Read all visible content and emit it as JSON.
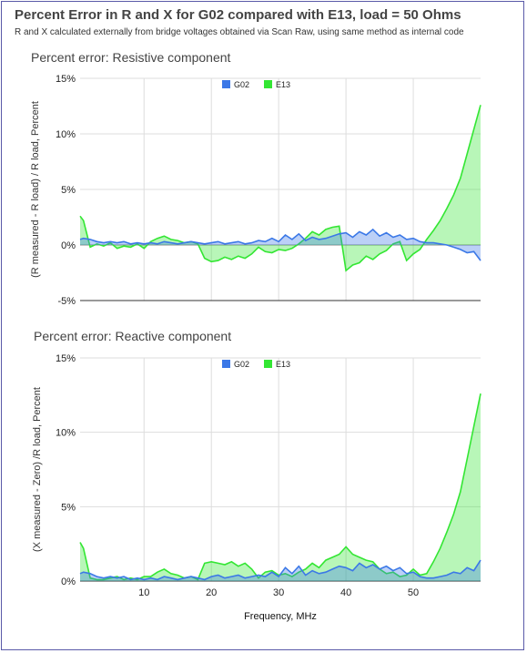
{
  "page": {
    "title": "Percent Error in R and X for G02 compared with E13, load = 50 Ohms",
    "subtitle": "R and X calculated externally from bridge voltages obtained via Scan Raw, using same method as internal code"
  },
  "colors": {
    "g02": "#3b78e7",
    "e13": "#33e633",
    "grid": "#dddddd",
    "axis": "#333333"
  },
  "chart_data": [
    {
      "type": "area",
      "title": "Percent error: Resistive component",
      "ylabel": "(R measured - R load) / R load, Percent",
      "xlabel": "",
      "xlim": [
        0.5,
        60
      ],
      "ylim": [
        -5,
        15
      ],
      "yticks": [
        -5,
        0,
        5,
        10,
        15
      ],
      "ytick_labels": [
        "-5%",
        "0%",
        "5%",
        "10%",
        "15%"
      ],
      "xticks": [],
      "xtick_labels": [],
      "legend": [
        "G02",
        "E13"
      ],
      "legend_position": "top-center",
      "series": [
        {
          "name": "G02",
          "x": [
            0.5,
            1,
            2,
            3,
            4,
            5,
            6,
            7,
            8,
            9,
            10,
            11,
            12,
            13,
            14,
            15,
            16,
            17,
            18,
            19,
            20,
            21,
            22,
            23,
            24,
            25,
            26,
            27,
            28,
            29,
            30,
            31,
            32,
            33,
            34,
            35,
            36,
            37,
            38,
            39,
            40,
            41,
            42,
            43,
            44,
            45,
            46,
            47,
            48,
            49,
            50,
            51,
            52,
            53,
            54,
            55,
            56,
            57,
            58,
            59,
            60
          ],
          "values": [
            0.5,
            0.6,
            0.5,
            0.3,
            0.2,
            0.3,
            0.2,
            0.3,
            0.1,
            0.2,
            0.1,
            0.2,
            0.1,
            0.3,
            0.2,
            0.1,
            0.2,
            0.3,
            0.2,
            0.1,
            0.2,
            0.3,
            0.1,
            0.2,
            0.3,
            0.1,
            0.2,
            0.4,
            0.3,
            0.6,
            0.3,
            0.9,
            0.5,
            1.0,
            0.4,
            0.7,
            0.5,
            0.6,
            0.8,
            1.0,
            1.1,
            0.7,
            1.2,
            0.9,
            1.4,
            0.8,
            1.1,
            0.7,
            0.9,
            0.5,
            0.6,
            0.3,
            0.2,
            0.2,
            0.1,
            0.0,
            -0.2,
            -0.4,
            -0.7,
            -0.6,
            -1.4
          ]
        },
        {
          "name": "E13",
          "x": [
            0.5,
            1,
            2,
            3,
            4,
            5,
            6,
            7,
            8,
            9,
            10,
            11,
            12,
            13,
            14,
            15,
            16,
            17,
            18,
            19,
            20,
            21,
            22,
            23,
            24,
            25,
            26,
            27,
            28,
            29,
            30,
            31,
            32,
            33,
            34,
            35,
            36,
            37,
            38,
            39,
            40,
            41,
            42,
            43,
            44,
            45,
            46,
            47,
            48,
            49,
            50,
            51,
            52,
            53,
            54,
            55,
            56,
            57,
            58,
            59,
            60
          ],
          "values": [
            2.6,
            2.2,
            -0.2,
            0.1,
            -0.1,
            0.2,
            -0.3,
            -0.1,
            -0.2,
            0.1,
            -0.3,
            0.3,
            0.6,
            0.8,
            0.5,
            0.4,
            0.2,
            0.3,
            0.1,
            -1.2,
            -1.5,
            -1.4,
            -1.1,
            -1.3,
            -1.0,
            -1.2,
            -0.8,
            -0.2,
            -0.6,
            -0.7,
            -0.4,
            -0.5,
            -0.3,
            0.1,
            0.6,
            1.2,
            0.9,
            1.4,
            1.6,
            1.7,
            -2.3,
            -1.8,
            -1.6,
            -1.0,
            -1.3,
            -0.8,
            -0.5,
            0.1,
            0.3,
            -1.4,
            -0.8,
            -0.4,
            0.5,
            1.3,
            2.2,
            3.3,
            4.5,
            6.0,
            8.2,
            10.4,
            12.6
          ]
        }
      ]
    },
    {
      "type": "area",
      "title": "Percent error: Reactive component",
      "ylabel": "(X measured - Zero) /R load, Percent",
      "xlabel": "Frequency, MHz",
      "xlim": [
        0.5,
        60
      ],
      "ylim": [
        0,
        15
      ],
      "yticks": [
        0,
        5,
        10,
        15
      ],
      "ytick_labels": [
        "0%",
        "5%",
        "10%",
        "15%"
      ],
      "xticks": [
        10,
        20,
        30,
        40,
        50
      ],
      "xtick_labels": [
        "10",
        "20",
        "30",
        "40",
        "50"
      ],
      "legend": [
        "G02",
        "E13"
      ],
      "legend_position": "top-center",
      "series": [
        {
          "name": "G02",
          "x": [
            0.5,
            1,
            2,
            3,
            4,
            5,
            6,
            7,
            8,
            9,
            10,
            11,
            12,
            13,
            14,
            15,
            16,
            17,
            18,
            19,
            20,
            21,
            22,
            23,
            24,
            25,
            26,
            27,
            28,
            29,
            30,
            31,
            32,
            33,
            34,
            35,
            36,
            37,
            38,
            39,
            40,
            41,
            42,
            43,
            44,
            45,
            46,
            47,
            48,
            49,
            50,
            51,
            52,
            53,
            54,
            55,
            56,
            57,
            58,
            59,
            60
          ],
          "values": [
            0.5,
            0.6,
            0.5,
            0.3,
            0.2,
            0.3,
            0.2,
            0.3,
            0.1,
            0.2,
            0.1,
            0.2,
            0.1,
            0.3,
            0.2,
            0.1,
            0.2,
            0.3,
            0.2,
            0.1,
            0.3,
            0.4,
            0.2,
            0.3,
            0.4,
            0.2,
            0.3,
            0.4,
            0.3,
            0.6,
            0.3,
            0.9,
            0.5,
            1.0,
            0.4,
            0.7,
            0.5,
            0.6,
            0.8,
            1.0,
            0.9,
            0.7,
            1.2,
            0.9,
            1.1,
            0.8,
            1.0,
            0.7,
            0.9,
            0.5,
            0.6,
            0.3,
            0.2,
            0.2,
            0.3,
            0.4,
            0.6,
            0.5,
            0.9,
            0.7,
            1.4
          ]
        },
        {
          "name": "E13",
          "x": [
            0.5,
            1,
            2,
            3,
            4,
            5,
            6,
            7,
            8,
            9,
            10,
            11,
            12,
            13,
            14,
            15,
            16,
            17,
            18,
            19,
            20,
            21,
            22,
            23,
            24,
            25,
            26,
            27,
            28,
            29,
            30,
            31,
            32,
            33,
            34,
            35,
            36,
            37,
            38,
            39,
            40,
            41,
            42,
            43,
            44,
            45,
            46,
            47,
            48,
            49,
            50,
            51,
            52,
            53,
            54,
            55,
            56,
            57,
            58,
            59,
            60
          ],
          "values": [
            2.6,
            2.2,
            0.2,
            0.1,
            0.1,
            0.2,
            0.3,
            0.1,
            0.2,
            0.1,
            0.3,
            0.3,
            0.6,
            0.8,
            0.5,
            0.4,
            0.2,
            0.3,
            0.1,
            1.2,
            1.3,
            1.2,
            1.1,
            1.3,
            1.0,
            1.2,
            0.8,
            0.2,
            0.6,
            0.7,
            0.4,
            0.5,
            0.3,
            0.6,
            0.8,
            1.2,
            0.9,
            1.4,
            1.6,
            1.8,
            2.3,
            1.8,
            1.6,
            1.4,
            1.3,
            0.8,
            0.5,
            0.6,
            0.3,
            0.4,
            0.8,
            0.4,
            0.5,
            1.3,
            2.2,
            3.3,
            4.5,
            6.0,
            8.2,
            10.4,
            12.6
          ]
        }
      ]
    }
  ]
}
